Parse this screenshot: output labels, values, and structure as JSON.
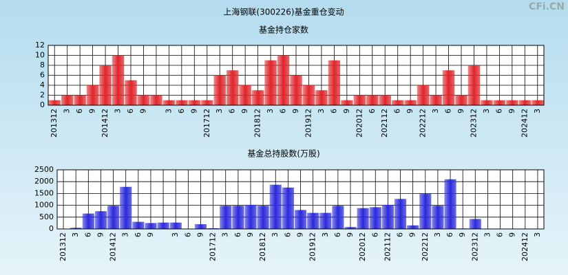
{
  "watermark": "CFi.CN",
  "chart_data": [
    {
      "type": "bar",
      "title": "上海钢联(300226)基金重仓变动",
      "subtitle": "基金持仓家数",
      "categories": [
        "201312",
        "3",
        "6",
        "9",
        "201412",
        "3",
        "6",
        "9",
        null,
        "3",
        "6",
        "9",
        "201712",
        "3",
        "6",
        "9",
        "201812",
        "3",
        "6",
        "9",
        "201912",
        "3",
        "6",
        "9",
        "202012",
        "6",
        "202112",
        "6",
        "9",
        "202212",
        "3",
        "6",
        "9",
        "202312",
        "3",
        "6",
        "9",
        "202412",
        "3"
      ],
      "values": [
        1,
        2,
        2,
        4,
        8,
        10,
        5,
        2,
        2,
        1,
        1,
        1,
        1,
        6,
        7,
        4,
        3,
        9,
        10,
        6,
        4,
        3,
        9,
        1,
        2,
        2,
        2,
        1,
        1,
        4,
        2,
        7,
        2,
        8,
        1,
        1,
        1,
        1,
        1
      ],
      "color": "#e0252a",
      "ylim": [
        0,
        12
      ],
      "yticks": [
        0,
        2,
        4,
        6,
        8,
        10,
        12
      ],
      "grid": true
    },
    {
      "type": "bar",
      "subtitle": "基金总持股数(万股)",
      "categories": [
        "201312",
        "3",
        "6",
        "9",
        "201412",
        "3",
        "6",
        "9",
        null,
        "3",
        "6",
        "9",
        "201712",
        "3",
        "6",
        "9",
        "201812",
        "3",
        "6",
        "9",
        "201912",
        "3",
        "6",
        "9",
        "202012",
        "6",
        "202112",
        "6",
        "9",
        "202212",
        "3",
        "6",
        "9",
        "202312",
        "3",
        "6",
        "9",
        "202412",
        "3"
      ],
      "values": [
        10,
        50,
        650,
        750,
        980,
        1780,
        300,
        250,
        270,
        270,
        0,
        200,
        30,
        980,
        980,
        1020,
        980,
        1870,
        1750,
        800,
        680,
        680,
        980,
        80,
        880,
        920,
        1020,
        1270,
        150,
        1480,
        980,
        2100,
        20,
        420,
        10,
        10,
        10,
        10,
        10
      ],
      "color": "#2b2bdc",
      "ylim": [
        0,
        2500
      ],
      "yticks": [
        0,
        500,
        1000,
        1500,
        2000,
        2500
      ],
      "grid": true
    }
  ]
}
